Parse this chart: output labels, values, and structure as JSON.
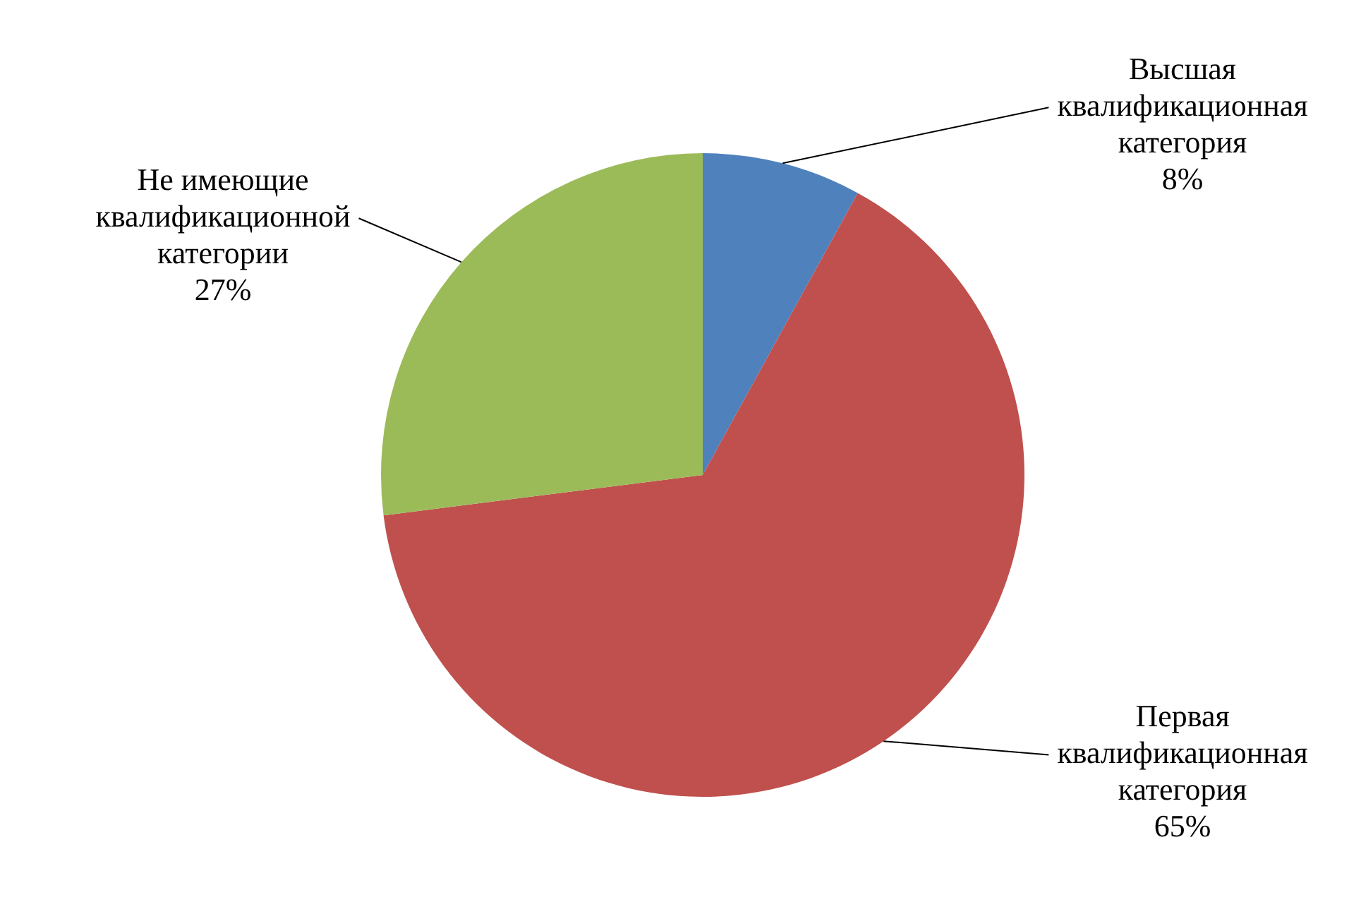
{
  "chart_data": {
    "type": "pie",
    "categories": [
      "Высшая квалификационная категория",
      "Первая квалификационная категория",
      "Не имеющие квалификационной категории"
    ],
    "values": [
      8,
      65,
      27
    ],
    "colors": [
      "#4f81bd",
      "#c0504d",
      "#9bbb59"
    ],
    "value_labels": [
      "8%",
      "65%",
      "27%"
    ],
    "legend": false
  }
}
